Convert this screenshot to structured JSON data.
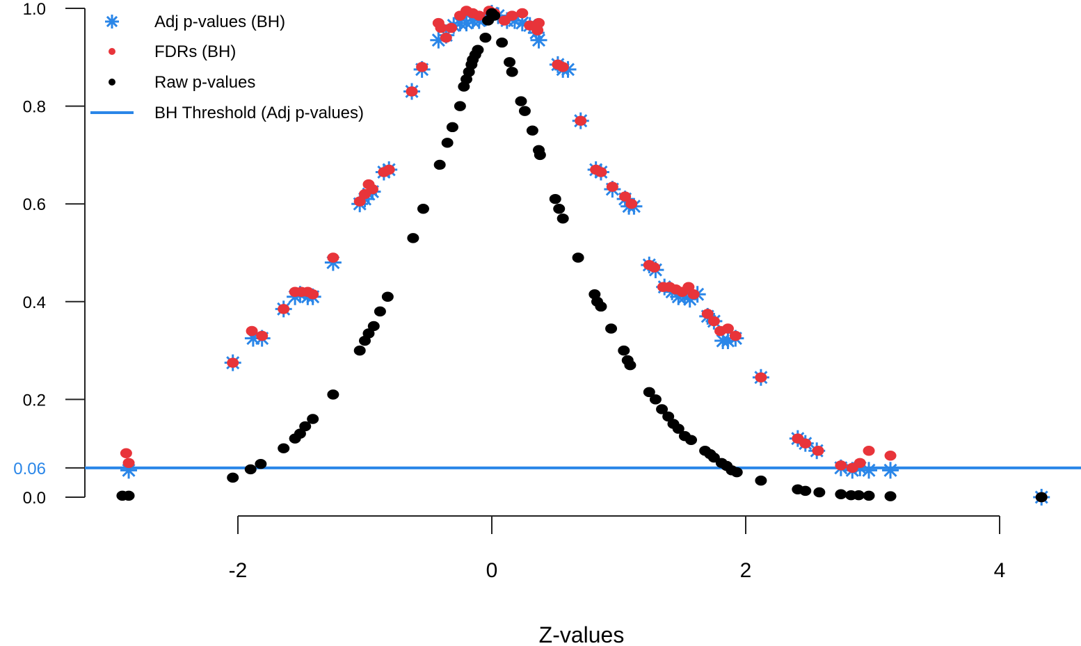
{
  "chart_data": {
    "type": "scatter",
    "title": "",
    "xlabel": "Z-values",
    "ylabel": "",
    "xlim": [
      -3.1,
      4.6
    ],
    "ylim": [
      0.0,
      1.0
    ],
    "x_ticks": [
      -2,
      0,
      2,
      4
    ],
    "x_tick_labels": [
      "-2",
      "0",
      "2",
      "4"
    ],
    "y_ticks": [
      0.0,
      0.2,
      0.4,
      0.6,
      0.8,
      1.0
    ],
    "y_tick_labels": [
      "0.0",
      "0.2",
      "0.4",
      "0.6",
      "0.8",
      "1.0"
    ],
    "grid": false,
    "legend_position": "top-left",
    "threshold": {
      "name": "BH Threshold (Adj p-values)",
      "value": 0.06,
      "label": "0.06",
      "color": "#2a86e8"
    },
    "series": [
      {
        "name": "Adj p-values (BH)",
        "marker": "asterisk",
        "color": "#2a86e8",
        "points": [
          [
            -2.86,
            0.055
          ],
          [
            -2.04,
            0.275
          ],
          [
            -1.88,
            0.325
          ],
          [
            -1.81,
            0.325
          ],
          [
            -1.64,
            0.385
          ],
          [
            -1.55,
            0.41
          ],
          [
            -1.51,
            0.415
          ],
          [
            -1.45,
            0.41
          ],
          [
            -1.41,
            0.41
          ],
          [
            -1.25,
            0.48
          ],
          [
            -1.04,
            0.6
          ],
          [
            -1.0,
            0.61
          ],
          [
            -0.97,
            0.62
          ],
          [
            -0.94,
            0.625
          ],
          [
            -0.85,
            0.665
          ],
          [
            -0.81,
            0.67
          ],
          [
            -0.63,
            0.83
          ],
          [
            -0.55,
            0.875
          ],
          [
            -0.42,
            0.935
          ],
          [
            -0.36,
            0.945
          ],
          [
            -0.3,
            0.965
          ],
          [
            -0.25,
            0.97
          ],
          [
            -0.2,
            0.97
          ],
          [
            -0.15,
            0.975
          ],
          [
            -0.1,
            0.975
          ],
          [
            -0.05,
            0.98
          ],
          [
            0.0,
            0.99
          ],
          [
            0.05,
            0.985
          ],
          [
            0.12,
            0.975
          ],
          [
            0.18,
            0.975
          ],
          [
            0.24,
            0.97
          ],
          [
            0.3,
            0.965
          ],
          [
            0.35,
            0.95
          ],
          [
            0.37,
            0.935
          ],
          [
            0.52,
            0.885
          ],
          [
            0.56,
            0.875
          ],
          [
            0.6,
            0.875
          ],
          [
            0.7,
            0.77
          ],
          [
            0.82,
            0.67
          ],
          [
            0.86,
            0.665
          ],
          [
            0.95,
            0.63
          ],
          [
            1.05,
            0.61
          ],
          [
            1.08,
            0.595
          ],
          [
            1.12,
            0.595
          ],
          [
            1.24,
            0.475
          ],
          [
            1.29,
            0.465
          ],
          [
            1.36,
            0.43
          ],
          [
            1.42,
            0.42
          ],
          [
            1.47,
            0.41
          ],
          [
            1.52,
            0.41
          ],
          [
            1.56,
            0.405
          ],
          [
            1.62,
            0.415
          ],
          [
            1.7,
            0.37
          ],
          [
            1.75,
            0.36
          ],
          [
            1.82,
            0.32
          ],
          [
            1.86,
            0.32
          ],
          [
            1.92,
            0.325
          ],
          [
            2.12,
            0.245
          ],
          [
            2.41,
            0.12
          ],
          [
            2.47,
            0.11
          ],
          [
            2.56,
            0.095
          ],
          [
            2.75,
            0.06
          ],
          [
            2.84,
            0.055
          ],
          [
            2.9,
            0.06
          ],
          [
            2.97,
            0.055
          ],
          [
            3.14,
            0.055
          ],
          [
            4.33,
            0.0
          ]
        ]
      },
      {
        "name": "FDRs (BH)",
        "marker": "dot",
        "color": "#e8343a",
        "points": [
          [
            -2.88,
            0.09
          ],
          [
            -2.86,
            0.07
          ],
          [
            -2.04,
            0.275
          ],
          [
            -1.89,
            0.34
          ],
          [
            -1.81,
            0.33
          ],
          [
            -1.64,
            0.385
          ],
          [
            -1.55,
            0.42
          ],
          [
            -1.5,
            0.42
          ],
          [
            -1.45,
            0.42
          ],
          [
            -1.41,
            0.415
          ],
          [
            -1.25,
            0.49
          ],
          [
            -1.04,
            0.605
          ],
          [
            -1.0,
            0.62
          ],
          [
            -0.97,
            0.64
          ],
          [
            -0.94,
            0.63
          ],
          [
            -0.85,
            0.665
          ],
          [
            -0.81,
            0.67
          ],
          [
            -0.63,
            0.83
          ],
          [
            -0.55,
            0.88
          ],
          [
            -0.42,
            0.97
          ],
          [
            -0.4,
            0.96
          ],
          [
            -0.36,
            0.94
          ],
          [
            -0.32,
            0.96
          ],
          [
            -0.25,
            0.985
          ],
          [
            -0.2,
            0.995
          ],
          [
            -0.15,
            0.99
          ],
          [
            -0.1,
            0.985
          ],
          [
            -0.02,
            0.995
          ],
          [
            0.02,
            0.99
          ],
          [
            0.1,
            0.975
          ],
          [
            0.16,
            0.985
          ],
          [
            0.24,
            0.99
          ],
          [
            0.3,
            0.965
          ],
          [
            0.37,
            0.97
          ],
          [
            0.36,
            0.955
          ],
          [
            0.52,
            0.885
          ],
          [
            0.56,
            0.88
          ],
          [
            0.7,
            0.77
          ],
          [
            0.82,
            0.67
          ],
          [
            0.86,
            0.665
          ],
          [
            0.95,
            0.635
          ],
          [
            1.05,
            0.615
          ],
          [
            1.1,
            0.6
          ],
          [
            1.24,
            0.475
          ],
          [
            1.28,
            0.47
          ],
          [
            1.35,
            0.43
          ],
          [
            1.4,
            0.43
          ],
          [
            1.45,
            0.425
          ],
          [
            1.5,
            0.42
          ],
          [
            1.55,
            0.43
          ],
          [
            1.59,
            0.415
          ],
          [
            1.7,
            0.375
          ],
          [
            1.75,
            0.36
          ],
          [
            1.8,
            0.34
          ],
          [
            1.86,
            0.345
          ],
          [
            1.92,
            0.33
          ],
          [
            2.12,
            0.245
          ],
          [
            2.41,
            0.12
          ],
          [
            2.47,
            0.11
          ],
          [
            2.57,
            0.095
          ],
          [
            2.75,
            0.065
          ],
          [
            2.84,
            0.06
          ],
          [
            2.9,
            0.07
          ],
          [
            2.97,
            0.095
          ],
          [
            3.14,
            0.085
          ],
          [
            4.33,
            0.0
          ]
        ]
      },
      {
        "name": "Raw p-values",
        "marker": "dot",
        "color": "#000000",
        "points": [
          [
            -2.91,
            0.003
          ],
          [
            -2.86,
            0.003
          ],
          [
            -2.04,
            0.04
          ],
          [
            -1.9,
            0.057
          ],
          [
            -1.82,
            0.068
          ],
          [
            -1.64,
            0.1
          ],
          [
            -1.55,
            0.12
          ],
          [
            -1.51,
            0.13
          ],
          [
            -1.47,
            0.145
          ],
          [
            -1.41,
            0.16
          ],
          [
            -1.25,
            0.21
          ],
          [
            -1.04,
            0.3
          ],
          [
            -1.0,
            0.32
          ],
          [
            -0.97,
            0.335
          ],
          [
            -0.93,
            0.35
          ],
          [
            -0.88,
            0.38
          ],
          [
            -0.82,
            0.41
          ],
          [
            -0.62,
            0.53
          ],
          [
            -0.54,
            0.59
          ],
          [
            -0.41,
            0.68
          ],
          [
            -0.35,
            0.725
          ],
          [
            -0.31,
            0.757
          ],
          [
            -0.25,
            0.8
          ],
          [
            -0.22,
            0.84
          ],
          [
            -0.2,
            0.855
          ],
          [
            -0.18,
            0.87
          ],
          [
            -0.16,
            0.885
          ],
          [
            -0.15,
            0.895
          ],
          [
            -0.13,
            0.905
          ],
          [
            -0.11,
            0.915
          ],
          [
            -0.05,
            0.94
          ],
          [
            -0.03,
            0.975
          ],
          [
            0.0,
            0.99
          ],
          [
            0.02,
            0.985
          ],
          [
            0.08,
            0.93
          ],
          [
            0.14,
            0.89
          ],
          [
            0.16,
            0.87
          ],
          [
            0.23,
            0.81
          ],
          [
            0.26,
            0.79
          ],
          [
            0.32,
            0.75
          ],
          [
            0.37,
            0.71
          ],
          [
            0.38,
            0.7
          ],
          [
            0.5,
            0.61
          ],
          [
            0.53,
            0.59
          ],
          [
            0.56,
            0.57
          ],
          [
            0.68,
            0.49
          ],
          [
            0.81,
            0.415
          ],
          [
            0.83,
            0.4
          ],
          [
            0.86,
            0.39
          ],
          [
            0.94,
            0.345
          ],
          [
            1.04,
            0.3
          ],
          [
            1.07,
            0.28
          ],
          [
            1.09,
            0.27
          ],
          [
            1.24,
            0.215
          ],
          [
            1.29,
            0.2
          ],
          [
            1.34,
            0.18
          ],
          [
            1.39,
            0.165
          ],
          [
            1.43,
            0.15
          ],
          [
            1.47,
            0.14
          ],
          [
            1.52,
            0.125
          ],
          [
            1.57,
            0.117
          ],
          [
            1.68,
            0.095
          ],
          [
            1.72,
            0.088
          ],
          [
            1.75,
            0.081
          ],
          [
            1.81,
            0.07
          ],
          [
            1.85,
            0.064
          ],
          [
            1.89,
            0.055
          ],
          [
            1.93,
            0.051
          ],
          [
            2.12,
            0.034
          ],
          [
            2.41,
            0.016
          ],
          [
            2.47,
            0.013
          ],
          [
            2.58,
            0.01
          ],
          [
            2.75,
            0.006
          ],
          [
            2.83,
            0.004
          ],
          [
            2.89,
            0.004
          ],
          [
            2.97,
            0.003
          ],
          [
            3.14,
            0.002
          ],
          [
            4.33,
            0.0
          ]
        ]
      }
    ],
    "legend": [
      {
        "label": "Adj p-values (BH)",
        "marker": "asterisk",
        "color": "#2a86e8"
      },
      {
        "label": "FDRs (BH)",
        "marker": "dot",
        "color": "#e8343a"
      },
      {
        "label": "Raw p-values",
        "marker": "dot",
        "color": "#000000"
      },
      {
        "label": "BH Threshold (Adj p-values)",
        "marker": "line",
        "color": "#2a86e8"
      }
    ]
  }
}
